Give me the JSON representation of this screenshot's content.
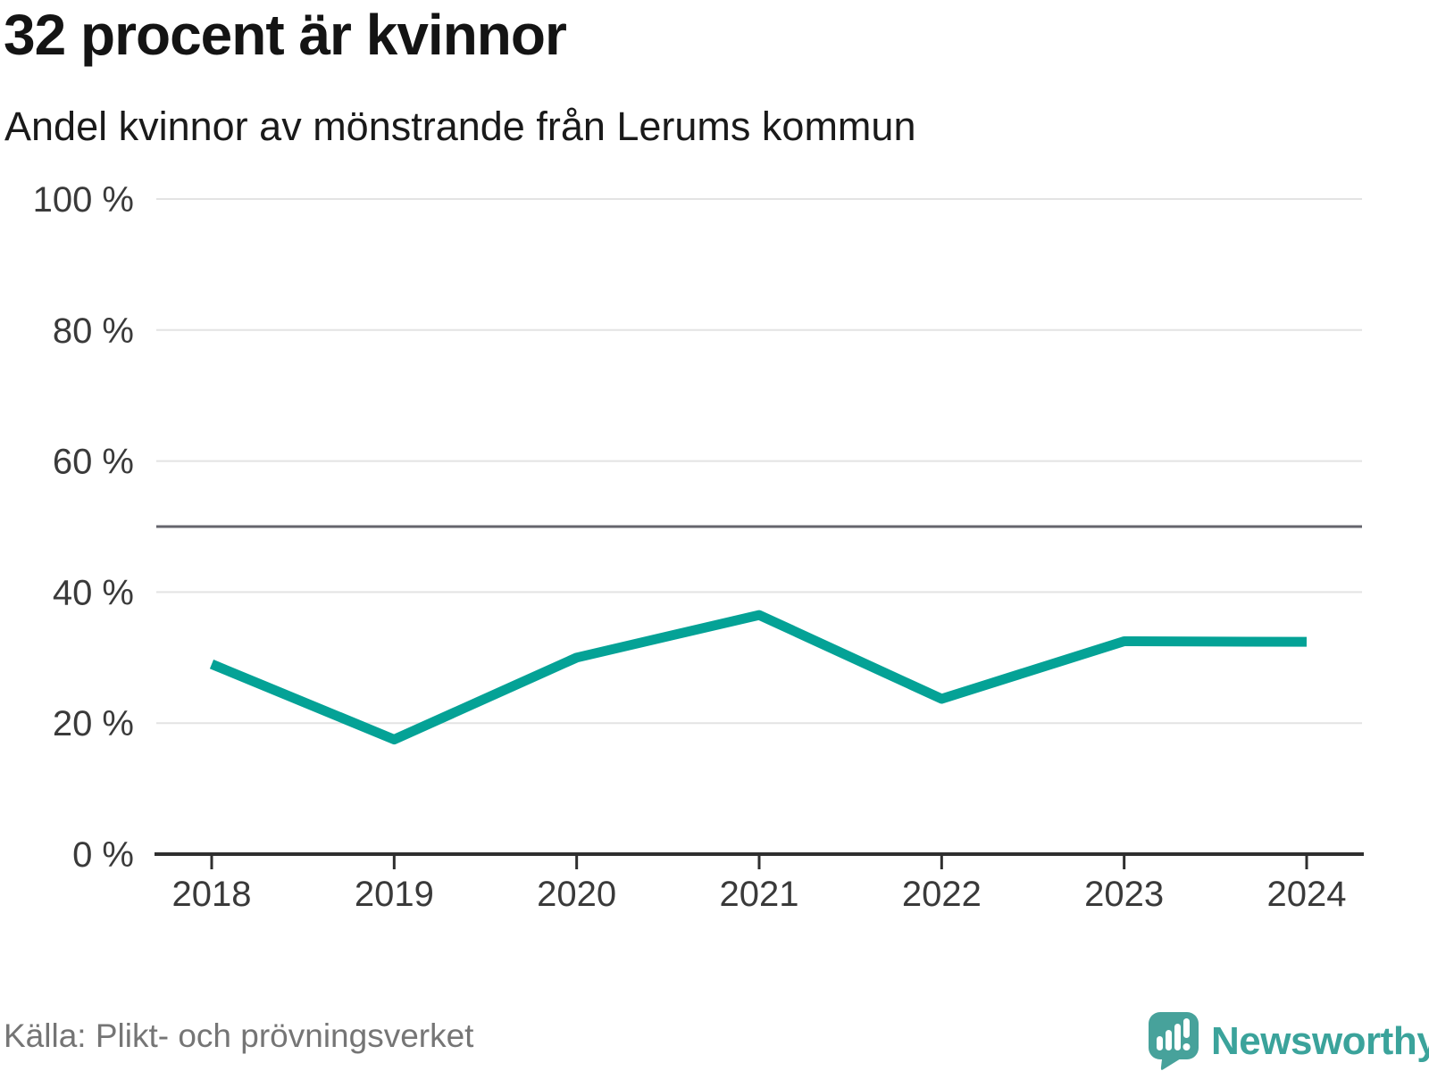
{
  "header": {
    "title": "32 procent är kvinnor",
    "subtitle": "Andel kvinnor av mönstrande från Lerums kommun"
  },
  "chart_data": {
    "type": "line",
    "x": [
      2018,
      2019,
      2020,
      2021,
      2022,
      2023,
      2024
    ],
    "series": [
      {
        "name": "Andel kvinnor av mönstrande",
        "values": [
          29,
          17.5,
          30,
          36.5,
          23.7,
          32.5,
          32.4
        ]
      }
    ],
    "title": "32 procent är kvinnor",
    "subtitle": "Andel kvinnor av mönstrande från Lerums kommun",
    "xlabel": "",
    "ylabel": "",
    "ylim": [
      0,
      100
    ],
    "yticks": [
      0,
      20,
      40,
      60,
      80,
      100
    ],
    "ytick_suffix": " %",
    "reference_line": 50,
    "grid": true,
    "legend_position": "none"
  },
  "colors": {
    "line": "#04a296",
    "grid": "#e3e3e3",
    "reference": "#65656c",
    "axis": "#2f2f2f",
    "tick_text": "#3a3a3a",
    "logo": "#47a29b",
    "brand_text": "#3ba39b"
  },
  "footer": {
    "source": "Källa: Plikt- och prövningsverket",
    "brand": "Newsworthy"
  }
}
